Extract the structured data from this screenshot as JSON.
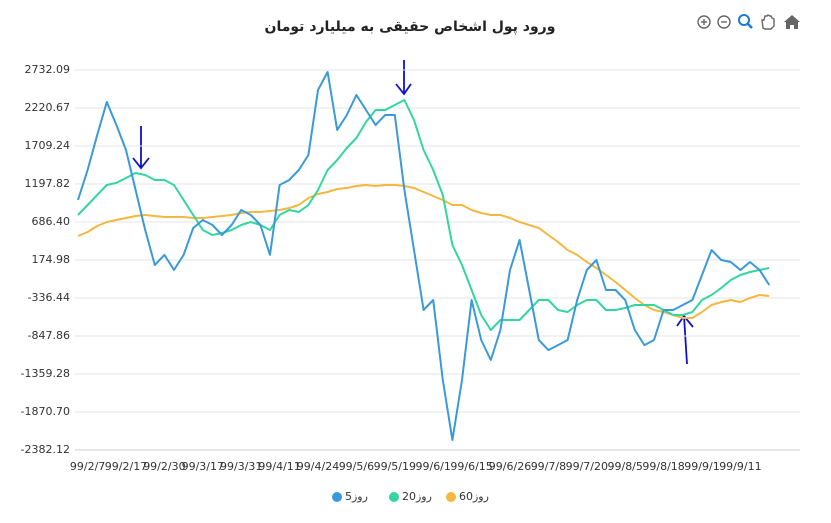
{
  "chart_data": {
    "type": "line",
    "title": "ورود پول اشخاص حقیقی به میلیارد تومان",
    "categories": [
      null,
      "99/2/7",
      null,
      null,
      null,
      "99/2/17",
      null,
      null,
      null,
      "99/2/30",
      null,
      null,
      null,
      "99/3/17",
      null,
      null,
      null,
      "99/3/31",
      null,
      null,
      null,
      "99/4/11",
      null,
      null,
      null,
      "99/4/24",
      null,
      null,
      null,
      "99/5/6",
      null,
      null,
      null,
      "99/5/19",
      null,
      null,
      null,
      "99/6/1",
      null,
      null,
      null,
      "99/6/15",
      null,
      null,
      null,
      "99/6/26",
      null,
      null,
      null,
      "99/7/8",
      null,
      null,
      null,
      "99/7/20",
      null,
      null,
      null,
      "99/8/5",
      null,
      null,
      null,
      "99/8/18",
      null,
      null,
      null,
      "99/9/1",
      null,
      null,
      null,
      "99/9/11",
      null,
      null,
      null
    ],
    "series": [
      {
        "name": "روز5",
        "color": "#3a9ad9",
        "values": [
          982,
          1386,
          1857,
          2301,
          1992,
          1655,
          1117,
          579,
          108,
          243,
          40,
          243,
          606,
          713,
          646,
          512,
          646,
          848,
          781,
          646,
          243,
          1185,
          1252,
          1386,
          1588,
          2463,
          2705,
          1924,
          2126,
          2396,
          2194,
          1992,
          2126,
          2126,
          1117,
          310,
          -498,
          -364,
          -1440,
          -2248,
          -1440,
          -364,
          -902,
          -1171,
          -767,
          40,
          444,
          -229,
          -902,
          -1037,
          -970,
          -902,
          -364,
          40,
          175,
          -229,
          -229,
          -364,
          -767,
          -970,
          -902,
          -498,
          -498,
          -431,
          -364,
          -27,
          310,
          175,
          148,
          40,
          148,
          40,
          -162
        ]
      },
      {
        "name": "روز20",
        "color": "#33d69f",
        "values": [
          781,
          915,
          1050,
          1185,
          1212,
          1279,
          1346,
          1319,
          1252,
          1252,
          1185,
          982,
          781,
          579,
          512,
          539,
          579,
          646,
          686,
          646,
          579,
          781,
          848,
          821,
          915,
          1117,
          1386,
          1521,
          1682,
          1817,
          2032,
          2194,
          2194,
          2261,
          2328,
          2059,
          1655,
          1386,
          1050,
          377,
          108,
          -229,
          -565,
          -767,
          -633,
          -633,
          -633,
          -498,
          -364,
          -364,
          -498,
          -525,
          -431,
          -364,
          -364,
          -498,
          -498,
          -471,
          -431,
          -431,
          -431,
          -498,
          -565,
          -565,
          -525,
          -364,
          -296,
          -202,
          -94,
          -27,
          13,
          40,
          67
        ]
      },
      {
        "name": "روز60",
        "color": "#f4b740",
        "values": [
          498,
          552,
          633,
          686,
          713,
          740,
          767,
          781,
          767,
          754,
          754,
          754,
          740,
          740,
          754,
          767,
          781,
          808,
          821,
          821,
          835,
          848,
          875,
          915,
          1009,
          1063,
          1090,
          1131,
          1144,
          1171,
          1185,
          1171,
          1185,
          1185,
          1171,
          1144,
          1090,
          1036,
          982,
          915,
          915,
          848,
          808,
          781,
          781,
          740,
          686,
          646,
          606,
          512,
          417,
          310,
          243,
          148,
          67,
          -27,
          -121,
          -229,
          -336,
          -431,
          -498,
          -525,
          -565,
          -606,
          -606,
          -525,
          -431,
          -391,
          -364,
          -391,
          -336,
          -296,
          -309
        ]
      }
    ],
    "ylim": [
      -2382.12,
      2732.09
    ],
    "yticks": [
      2732.09,
      2220.67,
      1709.24,
      1197.82,
      {
        "value": 686.4,
        "label": "686.40"
      },
      174.98,
      -336.44,
      -847.86,
      -1359.28,
      {
        "value": -1870.7,
        "label": "-1870.70"
      },
      -2382.12
    ],
    "grid": true
  }
}
